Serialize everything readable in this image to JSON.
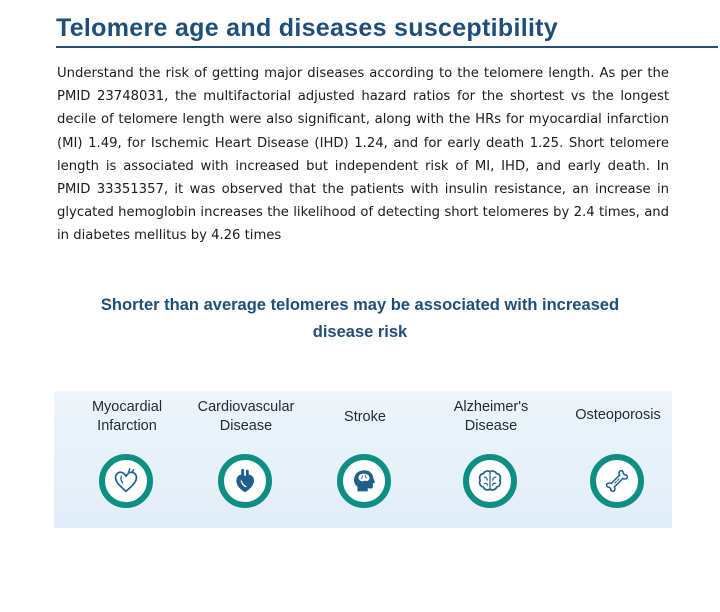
{
  "header": {
    "title": "Telomere age and diseases susceptibility"
  },
  "intro": {
    "paragraph": "Understand the risk of getting major diseases according to the telomere length. As per the PMID 23748031, the multifactorial adjusted hazard ratios for the shortest vs the longest decile of telomere length were also significant, along with the HRs for myocardial infarction (MI) 1.49, for Ischemic Heart Disease (IHD) 1.24, and for early death 1.25. Short telomere length is associated with increased but independent risk of MI, IHD, and early death. In PMID 33351357, it was observed that the patients with insulin resistance, an increase in glycated hemoglobin increases the likelihood of detecting short telomeres by 2.4 times, and in diabetes mellitus by 4.26 times"
  },
  "section": {
    "heading_line1": "Shorter than average telomeres may be associated with increased",
    "heading_line2": "disease risk"
  },
  "diseases": [
    {
      "line1": "Myocardial",
      "line2": "Infarction",
      "icon": "heart-icon"
    },
    {
      "line1": "Cardiovascular",
      "line2": "Disease",
      "icon": "anatomical-heart-icon"
    },
    {
      "line1": "Stroke",
      "line2": "",
      "icon": "head-brain-icon"
    },
    {
      "line1": "Alzheimer's",
      "line2": "Disease",
      "icon": "brain-icon"
    },
    {
      "line1": "Osteoporosis",
      "line2": "",
      "icon": "bone-icon"
    }
  ],
  "colors": {
    "title": "#1f4e79",
    "icon_ring": "#0e8f83",
    "icon_fill": "#1f5f8b",
    "panel": "#e6f0f8"
  }
}
